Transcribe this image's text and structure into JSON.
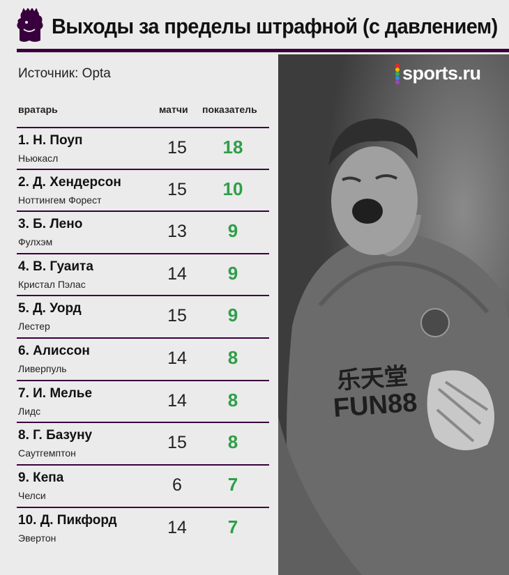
{
  "header": {
    "title": "Выходы за пределы штрафной (с давлением)"
  },
  "source": "Источник: Opta",
  "brand": {
    "name": "sports.ru",
    "dot_colors": [
      "#e8282b",
      "#f7b500",
      "#3fae49",
      "#2f8fd8",
      "#a43fc9"
    ]
  },
  "columns": {
    "goalkeeper": "вратарь",
    "matches": "матчи",
    "value": "показатель"
  },
  "colors": {
    "accent": "#38003c",
    "value": "#2e9e4a"
  },
  "rows": [
    {
      "name": "1. Н. Поуп",
      "club": "Ньюкасл",
      "matches": "15",
      "value": "18"
    },
    {
      "name": "2. Д. Хендерсон",
      "club": "Ноттингем Форест",
      "matches": "15",
      "value": "10"
    },
    {
      "name": "3. Б. Лено",
      "club": "Фулхэм",
      "matches": "13",
      "value": "9"
    },
    {
      "name": "4. В. Гуаита",
      "club": "Кристал Пэлас",
      "matches": "14",
      "value": "9"
    },
    {
      "name": "5. Д. Уорд",
      "club": "Лестер",
      "matches": "15",
      "value": "9"
    },
    {
      "name": "6. Алиссон",
      "club": "Ливерпуль",
      "matches": "14",
      "value": "8"
    },
    {
      "name": "7. И. Мелье",
      "club": "Лидс",
      "matches": "14",
      "value": "8"
    },
    {
      "name": "8. Г. Базуну",
      "club": "Саутгемптон",
      "matches": "15",
      "value": "8"
    },
    {
      "name": "9. Кепа",
      "club": "Челси",
      "matches": "6",
      "value": "7"
    },
    {
      "name": "10. Д. Пикфорд",
      "club": "Эвертон",
      "matches": "14",
      "value": "7"
    }
  ]
}
